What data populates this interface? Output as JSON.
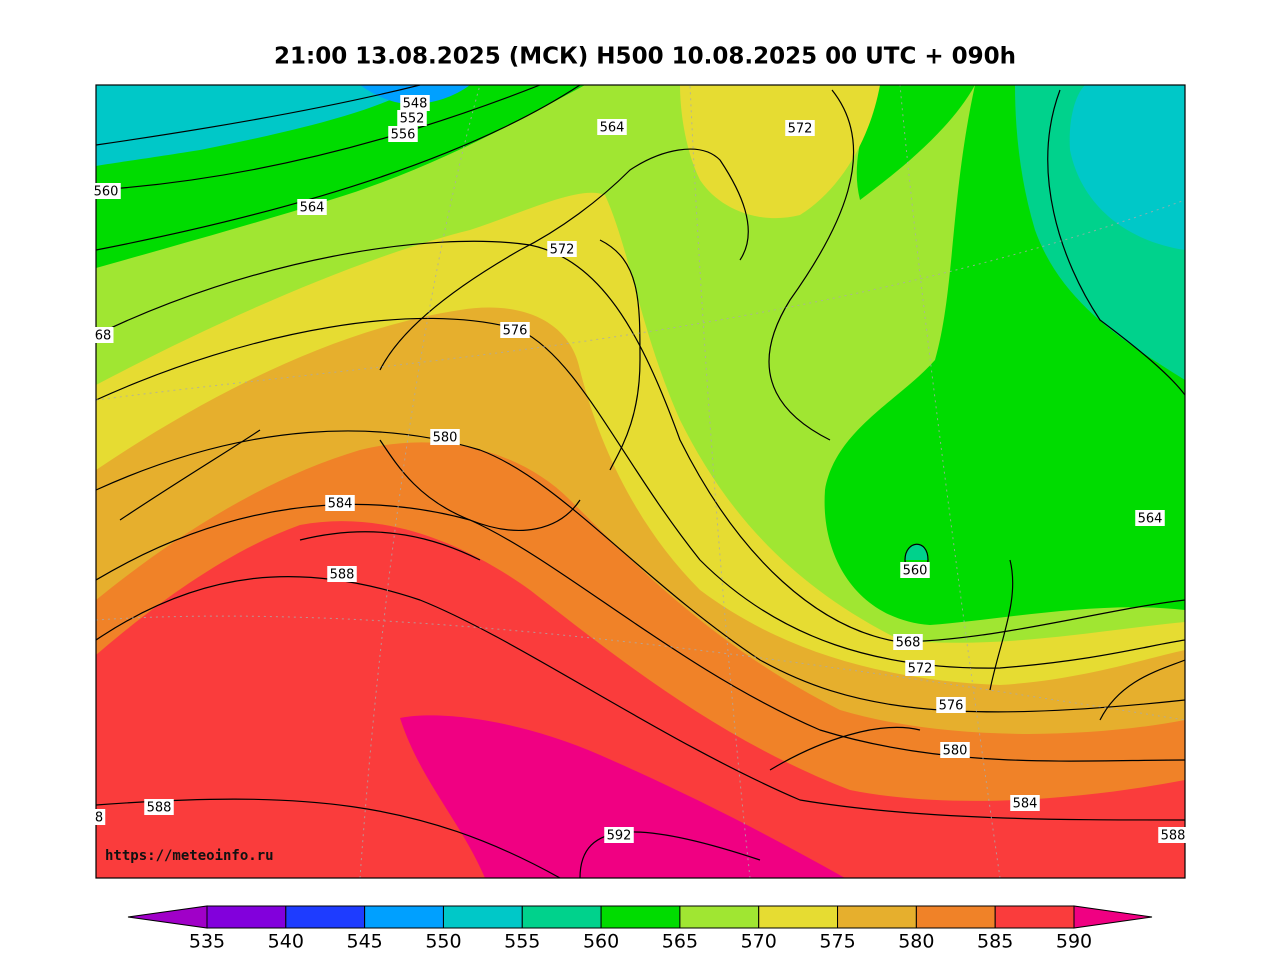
{
  "title": "21:00 13.08.2025 (МСК) H500  10.08.2025 00 UTC + 090h",
  "watermark": "https://meteoinfo.ru",
  "contour_labels": [
    "548",
    "552",
    "556",
    "560",
    "564",
    "68",
    "564",
    "572",
    "572",
    "576",
    "580",
    "584",
    "588",
    "8",
    "588",
    "592",
    "560",
    "564",
    "568",
    "572",
    "576",
    "580",
    "584",
    "588"
  ],
  "colorbar": {
    "ticks": [
      535,
      540,
      545,
      550,
      555,
      560,
      565,
      570,
      575,
      580,
      585,
      590
    ],
    "colors": [
      "#8200dc",
      "#1e3cff",
      "#00a0ff",
      "#00c8c8",
      "#00d28c",
      "#00dc00",
      "#a0e632",
      "#e6dc32",
      "#e6af2d",
      "#f08228",
      "#fa3c3c"
    ],
    "extend_colors": [
      "#a000c8",
      "#f00082"
    ]
  }
}
